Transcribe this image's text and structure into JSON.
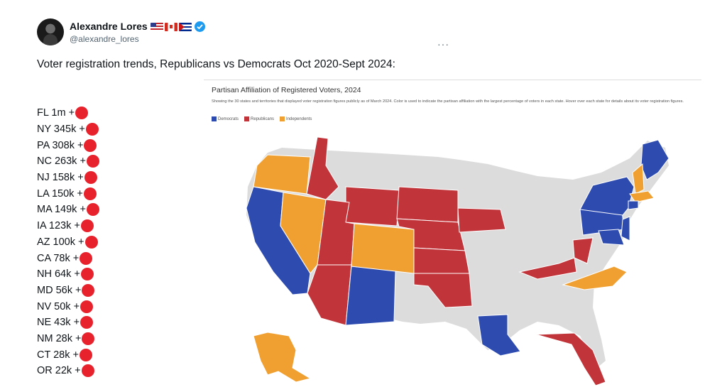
{
  "author": {
    "name": "Alexandre Lores",
    "handle": "@alexandre_lores",
    "flags": [
      "flag-us-icon",
      "flag-canada-icon",
      "flag-cuba-icon"
    ],
    "verified": true
  },
  "tweet": {
    "text": "Voter registration trends, Republicans vs Democrats Oct 2020-Sept 2024:",
    "more_label": "···"
  },
  "trends": [
    {
      "label": "FL 1m +"
    },
    {
      "label": "NY 345k +"
    },
    {
      "label": "PA 308k +"
    },
    {
      "label": "NC 263k +"
    },
    {
      "label": "NJ 158k +"
    },
    {
      "label": "LA 150k +"
    },
    {
      "label": "MA 149k +"
    },
    {
      "label": "IA 123k +"
    },
    {
      "label": "AZ 100k +"
    },
    {
      "label": "CA 78k +"
    },
    {
      "label": "NH 64k +"
    },
    {
      "label": "MD 56k +"
    },
    {
      "label": "NV 50k +"
    },
    {
      "label": "NE 43k +"
    },
    {
      "label": "NM 28k +"
    },
    {
      "label": "CT 28k +"
    },
    {
      "label": "OR 22k +"
    }
  ],
  "map": {
    "title": "Partisan Affiliation of Registered Voters, 2024",
    "description": "Showing the 30 states and territories that displayed voter registration figures publicly as of March 2024. Color is used to indicate the partisan affiliation with the largest percentage of voters in each state. Hover over each state for details about its voter registration figures.",
    "legend": [
      {
        "label": "Democrats",
        "color": "#2e4cb0"
      },
      {
        "label": "Republicans",
        "color": "#c0343a"
      },
      {
        "label": "Independents",
        "color": "#f0a030"
      }
    ],
    "colors": {
      "democrat": "#2e4cb0",
      "republican": "#c0343a",
      "independent": "#f0a030",
      "no_data": "#dcdcdc"
    }
  }
}
